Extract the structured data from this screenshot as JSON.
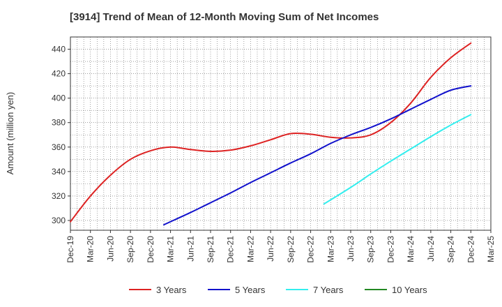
{
  "chart_data": {
    "type": "line",
    "title": "[3914]  Trend of Mean of 12-Month Moving Sum of Net Incomes",
    "xlabel": "",
    "ylabel": "Amount (million yen)",
    "ylim": [
      292,
      450
    ],
    "y_ticks": [
      300,
      320,
      340,
      360,
      380,
      400,
      420,
      440
    ],
    "x_tick_labels": [
      "Dec-19",
      "Mar-20",
      "Jun-20",
      "Sep-20",
      "Dec-20",
      "Mar-21",
      "Jun-21",
      "Sep-21",
      "Dec-21",
      "Mar-22",
      "Jun-22",
      "Sep-22",
      "Dec-22",
      "Mar-23",
      "Jun-23",
      "Sep-23",
      "Dec-23",
      "Mar-24",
      "Jun-24",
      "Sep-24",
      "Dec-24",
      "Mar-25"
    ],
    "x_range": [
      "Dec-19",
      "Mar-25"
    ],
    "grid": true,
    "legend_position": "bottom",
    "series": [
      {
        "name": "3 Years",
        "color": "#dd2222",
        "points": [
          [
            "Dec-19",
            299
          ],
          [
            "Mar-20",
            320
          ],
          [
            "Jun-20",
            337
          ],
          [
            "Sep-20",
            350
          ],
          [
            "Dec-20",
            357
          ],
          [
            "Mar-21",
            360
          ],
          [
            "Jun-21",
            358
          ],
          [
            "Sep-21",
            356.5
          ],
          [
            "Dec-21",
            357.5
          ],
          [
            "Mar-22",
            361
          ],
          [
            "Jun-22",
            366
          ],
          [
            "Sep-22",
            371
          ],
          [
            "Dec-22",
            370.5
          ],
          [
            "Mar-23",
            368
          ],
          [
            "Jun-23",
            367.5
          ],
          [
            "Sep-23",
            370
          ],
          [
            "Dec-23",
            380
          ],
          [
            "Mar-24",
            396
          ],
          [
            "Jun-24",
            417
          ],
          [
            "Sep-24",
            433
          ],
          [
            "Dec-24",
            445
          ]
        ]
      },
      {
        "name": "5 Years",
        "color": "#1111cc",
        "points": [
          [
            "Feb-21",
            296.5
          ],
          [
            "Mar-21",
            299
          ],
          [
            "Jun-21",
            306.5
          ],
          [
            "Sep-21",
            314.5
          ],
          [
            "Dec-21",
            322.5
          ],
          [
            "Mar-22",
            331
          ],
          [
            "Jun-22",
            339
          ],
          [
            "Sep-22",
            347
          ],
          [
            "Dec-22",
            354.5
          ],
          [
            "Mar-23",
            363
          ],
          [
            "Jun-23",
            370
          ],
          [
            "Sep-23",
            376
          ],
          [
            "Dec-23",
            383
          ],
          [
            "Mar-24",
            391
          ],
          [
            "Jun-24",
            399
          ],
          [
            "Sep-24",
            406.5
          ],
          [
            "Dec-24",
            410
          ]
        ]
      },
      {
        "name": "7 Years",
        "color": "#33eeee",
        "points": [
          [
            "Feb-23",
            313.5
          ],
          [
            "Jun-23",
            327
          ],
          [
            "Sep-23",
            338
          ],
          [
            "Dec-23",
            348.5
          ],
          [
            "Mar-24",
            358.5
          ],
          [
            "Jun-24",
            368.5
          ],
          [
            "Sep-24",
            378
          ],
          [
            "Dec-24",
            386.5
          ]
        ]
      },
      {
        "name": "10 Years",
        "color": "#228822",
        "points": []
      }
    ]
  }
}
